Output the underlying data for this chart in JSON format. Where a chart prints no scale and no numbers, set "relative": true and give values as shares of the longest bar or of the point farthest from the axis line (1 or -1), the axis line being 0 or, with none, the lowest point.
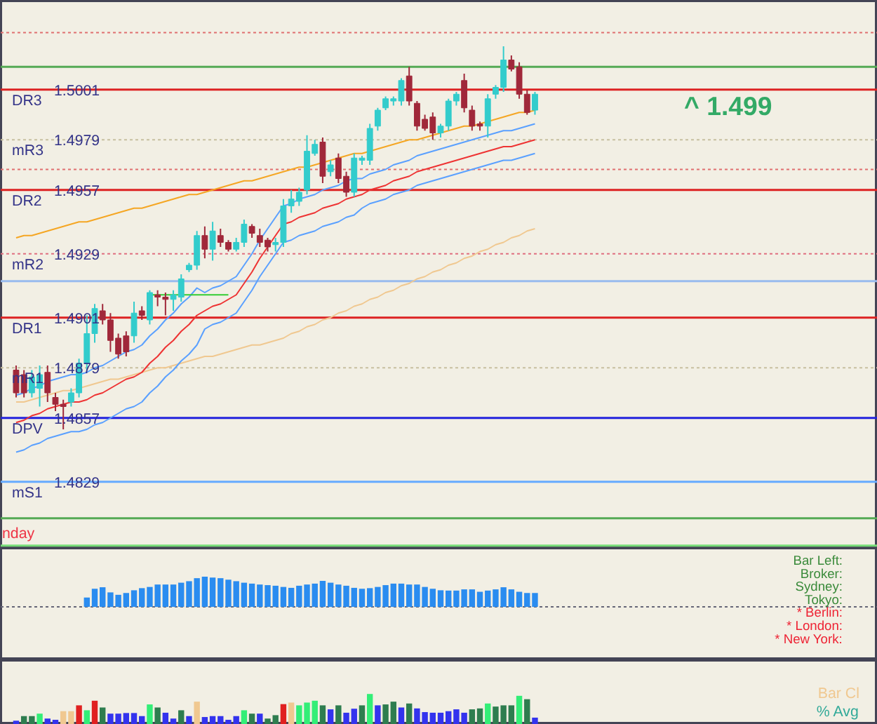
{
  "chart_data": [
    {
      "type": "candlestick",
      "tick_labels": "y",
      "grid": false,
      "ylim": [
        1.48,
        1.504
      ],
      "yticks": [
        1.5001,
        1.4979,
        1.4957,
        1.4929,
        1.4901,
        1.4879,
        1.4857,
        1.4829
      ],
      "categories": [
        null,
        null,
        null,
        null,
        null,
        null,
        null,
        null,
        null,
        null,
        null,
        null,
        null,
        null,
        null,
        null,
        null,
        null,
        null,
        null,
        null,
        null,
        null,
        null,
        null,
        null,
        null,
        null,
        null,
        null,
        null,
        null,
        null,
        null,
        null,
        null,
        null,
        null,
        null,
        null,
        null,
        null,
        null,
        null,
        null,
        null,
        null,
        null,
        null,
        null,
        null,
        null,
        null,
        null,
        null,
        null,
        null,
        null,
        null,
        null,
        null,
        null,
        null,
        null,
        null,
        null,
        null
      ],
      "ohlc": [
        [
          1.4878,
          1.488,
          1.4866,
          1.4868
        ],
        [
          1.4876,
          1.4878,
          1.4866,
          1.4868
        ],
        [
          1.4868,
          1.4878,
          1.4866,
          1.4875
        ],
        [
          1.487,
          1.488,
          1.4862,
          1.4876
        ],
        [
          1.4877,
          1.488,
          1.4864,
          1.4868
        ],
        [
          1.4866,
          1.4868,
          1.486,
          1.4863
        ],
        [
          1.4863,
          1.4865,
          1.4852,
          1.4862
        ],
        [
          1.4864,
          1.487,
          1.4862,
          1.4868
        ],
        [
          1.4868,
          1.4883,
          1.4866,
          1.4881
        ],
        [
          1.4881,
          1.4902,
          1.4878,
          1.4894
        ],
        [
          1.4894,
          1.4907,
          1.489,
          1.4905
        ],
        [
          1.4904,
          1.4907,
          1.4898,
          1.49
        ],
        [
          1.49,
          1.4903,
          1.4886,
          1.4891
        ],
        [
          1.4892,
          1.4894,
          1.4883,
          1.4885
        ],
        [
          1.4893,
          1.4895,
          1.4884,
          1.4886
        ],
        [
          1.4893,
          1.4908,
          1.489,
          1.4903
        ],
        [
          1.4904,
          1.4906,
          1.49,
          1.4902
        ],
        [
          1.49,
          1.4913,
          1.4898,
          1.4912
        ],
        [
          1.4911,
          1.4913,
          1.4906,
          1.491
        ],
        [
          1.491,
          1.4912,
          1.4902,
          1.4909
        ],
        [
          1.4909,
          1.4913,
          1.4904,
          1.4911
        ],
        [
          1.491,
          1.492,
          1.4908,
          1.4918
        ],
        [
          1.4922,
          1.4925,
          1.4921,
          1.4924
        ],
        [
          1.4924,
          1.4939,
          1.4922,
          1.4937
        ],
        [
          1.4937,
          1.4941,
          1.4927,
          1.4931
        ],
        [
          1.4931,
          1.4943,
          1.4926,
          1.4939
        ],
        [
          1.4937,
          1.494,
          1.4932,
          1.4934
        ],
        [
          1.4934,
          1.4935,
          1.493,
          1.4931
        ],
        [
          1.4931,
          1.4936,
          1.493,
          1.4934
        ],
        [
          1.4934,
          1.4944,
          1.4932,
          1.4942
        ],
        [
          1.4941,
          1.4942,
          1.4936,
          1.4938
        ],
        [
          1.4937,
          1.494,
          1.4932,
          1.4934
        ],
        [
          1.4935,
          1.4936,
          1.493,
          1.4932
        ],
        [
          1.4933,
          1.4936,
          1.493,
          1.4934
        ],
        [
          1.4934,
          1.4953,
          1.4932,
          1.495
        ],
        [
          1.495,
          1.4957,
          1.4947,
          1.4953
        ],
        [
          1.4952,
          1.4958,
          1.495,
          1.4956
        ],
        [
          1.4957,
          1.4981,
          1.4955,
          1.4974
        ],
        [
          1.4973,
          1.4979,
          1.4972,
          1.4977
        ],
        [
          1.4978,
          1.498,
          1.496,
          1.4963
        ],
        [
          1.4965,
          1.497,
          1.4963,
          1.4968
        ],
        [
          1.4971,
          1.4973,
          1.496,
          1.4962
        ],
        [
          1.4963,
          1.4965,
          1.4954,
          1.4956
        ],
        [
          1.4956,
          1.4973,
          1.4954,
          1.4971
        ],
        [
          1.497,
          1.4972,
          1.4968,
          1.4971
        ],
        [
          1.497,
          1.4986,
          1.4968,
          1.4984
        ],
        [
          1.4985,
          1.4993,
          1.4983,
          1.4992
        ],
        [
          1.4993,
          1.4998,
          1.4992,
          1.4997
        ],
        [
          1.4996,
          1.4998,
          1.4994,
          1.4997
        ],
        [
          1.4996,
          1.5006,
          1.4994,
          1.5005
        ],
        [
          1.5007,
          1.5011,
          1.4994,
          1.4996
        ],
        [
          1.4995,
          1.4996,
          1.4983,
          1.4985
        ],
        [
          1.4988,
          1.499,
          1.4983,
          1.4984
        ],
        [
          1.4989,
          1.4991,
          1.4979,
          1.4982
        ],
        [
          1.4982,
          1.4986,
          1.498,
          1.4985
        ],
        [
          1.4985,
          1.4997,
          1.4983,
          1.4996
        ],
        [
          1.4996,
          1.5,
          1.4994,
          1.4999
        ],
        [
          1.5005,
          1.5008,
          1.4991,
          1.4993
        ],
        [
          1.4992,
          1.4994,
          1.4983,
          1.4985
        ],
        [
          1.4986,
          1.4987,
          1.4983,
          1.4985
        ],
        [
          1.4985,
          1.4999,
          1.498,
          1.4997
        ],
        [
          1.4999,
          1.5003,
          1.4997,
          1.5002
        ],
        [
          1.5002,
          1.502,
          1.5,
          1.5014
        ],
        [
          1.5014,
          1.5016,
          1.5009,
          1.501
        ],
        [
          1.5011,
          1.5013,
          1.4997,
          1.4999
        ],
        [
          1.4999,
          1.5001,
          1.499,
          1.4991
        ],
        [
          1.4992,
          1.5,
          1.499,
          1.4999
        ]
      ],
      "series": [
        {
          "type": "line",
          "color": "#f5a623",
          "values": [
            1.4936,
            1.4937,
            1.4937,
            1.4938,
            1.4939,
            1.494,
            1.4941,
            1.4942,
            1.4943,
            1.4943,
            1.4944,
            1.4945,
            1.4946,
            1.4947,
            1.4948,
            1.4949,
            1.4949,
            1.495,
            1.4951,
            1.4952,
            1.4953,
            1.4954,
            1.4955,
            1.4955,
            1.4956,
            1.4957,
            1.4958,
            1.4959,
            1.496,
            1.4961,
            1.4961,
            1.4962,
            1.4963,
            1.4964,
            1.4965,
            1.4966,
            1.4967,
            1.4967,
            1.4968,
            1.4969,
            1.497,
            1.4971,
            1.4972,
            1.4973,
            1.4973,
            1.4974,
            1.4975,
            1.4976,
            1.4977,
            1.4978,
            1.4979,
            1.4979,
            1.498,
            1.4981,
            1.4982,
            1.4983,
            1.4984,
            1.4985,
            1.4985,
            1.4986,
            1.4987,
            1.4988,
            1.4989,
            1.499,
            1.4991,
            1.4991,
            1.4992
          ]
        },
        {
          "type": "line",
          "color": "#f0c890",
          "values": [
            1.4864,
            1.4864,
            1.4865,
            1.4866,
            1.4867,
            1.4868,
            1.4869,
            1.4869,
            1.487,
            1.4871,
            1.4872,
            1.4873,
            1.4874,
            1.4874,
            1.4875,
            1.4876,
            1.4877,
            1.4878,
            1.4879,
            1.4879,
            1.488,
            1.4881,
            1.4882,
            1.4883,
            1.4884,
            1.4884,
            1.4885,
            1.4886,
            1.4887,
            1.4888,
            1.4889,
            1.4889,
            1.489,
            1.4891,
            1.4892,
            1.4894,
            1.4895,
            1.4897,
            1.4898,
            1.49,
            1.4901,
            1.4903,
            1.4904,
            1.4906,
            1.4907,
            1.4909,
            1.491,
            1.4912,
            1.4913,
            1.4915,
            1.4916,
            1.4918,
            1.4919,
            1.4921,
            1.4922,
            1.4924,
            1.4925,
            1.4927,
            1.4928,
            1.493,
            1.4931,
            1.4933,
            1.4934,
            1.4936,
            1.4937,
            1.4939,
            1.494
          ]
        },
        {
          "type": "line",
          "color": "#ee3333",
          "values": [
            1.4855,
            1.4856,
            1.4858,
            1.4859,
            1.4861,
            1.4862,
            1.4863,
            1.4864,
            1.4864,
            1.4865,
            1.4867,
            1.4868,
            1.487,
            1.4872,
            1.4874,
            1.4875,
            1.4877,
            1.4881,
            1.4884,
            1.4888,
            1.4891,
            1.4895,
            1.4898,
            1.4902,
            1.4904,
            1.4906,
            1.4907,
            1.4909,
            1.4911,
            1.4916,
            1.4921,
            1.4927,
            1.4932,
            1.4937,
            1.4942,
            1.4943,
            1.4945,
            1.4946,
            1.4947,
            1.4949,
            1.495,
            1.4951,
            1.4953,
            1.4954,
            1.4955,
            1.4957,
            1.4958,
            1.4959,
            1.4961,
            1.4962,
            1.4963,
            1.4965,
            1.4966,
            1.4967,
            1.4968,
            1.4969,
            1.497,
            1.4971,
            1.4972,
            1.4973,
            1.4974,
            1.4975,
            1.4976,
            1.4976,
            1.4977,
            1.4978,
            1.4979
          ]
        },
        {
          "type": "line",
          "color": "#5aa0ff",
          "values": [
            1.4867,
            1.4868,
            1.487,
            1.4871,
            1.4873,
            1.4874,
            1.4875,
            1.4876,
            1.4876,
            1.4877,
            1.4879,
            1.488,
            1.4882,
            1.4884,
            1.4886,
            1.4887,
            1.4889,
            1.4893,
            1.4896,
            1.49,
            1.4903,
            1.4907,
            1.491,
            1.4914,
            1.4912,
            1.4914,
            1.4915,
            1.4917,
            1.4919,
            1.4924,
            1.4929,
            1.4935,
            1.494,
            1.4945,
            1.495,
            1.4951,
            1.4953,
            1.4954,
            1.4955,
            1.4957,
            1.4958,
            1.4959,
            1.4961,
            1.4962,
            1.4962,
            1.4964,
            1.4965,
            1.4966,
            1.4968,
            1.4969,
            1.497,
            1.4972,
            1.4973,
            1.4974,
            1.4975,
            1.4976,
            1.4977,
            1.4978,
            1.4979,
            1.498,
            1.4981,
            1.4982,
            1.4983,
            1.4983,
            1.4984,
            1.4985,
            1.4986
          ]
        },
        {
          "type": "line",
          "color": "#5aa0ff",
          "values": [
            1.4842,
            1.4843,
            1.4845,
            1.4846,
            1.4848,
            1.4849,
            1.485,
            1.4851,
            1.4851,
            1.4852,
            1.4854,
            1.4855,
            1.4857,
            1.4859,
            1.4861,
            1.4862,
            1.4864,
            1.4868,
            1.4871,
            1.4875,
            1.4878,
            1.4882,
            1.4885,
            1.4889,
            1.4896,
            1.4898,
            1.4899,
            1.4901,
            1.4903,
            1.4908,
            1.4913,
            1.4919,
            1.4924,
            1.4929,
            1.4934,
            1.4935,
            1.4937,
            1.4938,
            1.4939,
            1.4941,
            1.4942,
            1.4943,
            1.4945,
            1.4946,
            1.4949,
            1.4951,
            1.4952,
            1.4953,
            1.4955,
            1.4956,
            1.4957,
            1.4959,
            1.496,
            1.4961,
            1.4962,
            1.4963,
            1.4964,
            1.4965,
            1.4966,
            1.4967,
            1.4968,
            1.4969,
            1.497,
            1.497,
            1.4971,
            1.4972,
            1.4973
          ]
        },
        {
          "type": "line",
          "color": "#33cc33",
          "values": [
            null,
            null,
            null,
            null,
            null,
            null,
            null,
            null,
            null,
            null,
            null,
            null,
            null,
            null,
            null,
            null,
            null,
            1.4911,
            1.4911,
            1.4911,
            1.4911,
            1.4911,
            1.4911,
            1.4911,
            1.4911,
            1.4911,
            1.4911,
            1.4911,
            null,
            null,
            null,
            null,
            null,
            null,
            null,
            null,
            null,
            null,
            null,
            null,
            null,
            null,
            null,
            null,
            null,
            null,
            null,
            null,
            null,
            null,
            null,
            null,
            null,
            null,
            null,
            null,
            null,
            null,
            null,
            null,
            null,
            null,
            null,
            null,
            null,
            null,
            null
          ]
        }
      ],
      "ref_lines": [
        {
          "axis": "y",
          "value": 1.5001,
          "label": "DR3",
          "color": "#dd2222"
        },
        {
          "axis": "y",
          "value": 1.4979,
          "label": "mR3",
          "color": "#c8c0a0",
          "line_style": "dotted"
        },
        {
          "axis": "y",
          "value": 1.4957,
          "label": "DR2",
          "color": "#dd2222"
        },
        {
          "axis": "y",
          "value": 1.4929,
          "label": "mR2",
          "color": "#e07080",
          "line_style": "dotted"
        },
        {
          "axis": "y",
          "value": 1.4901,
          "label": "DR1",
          "color": "#dd2222"
        },
        {
          "axis": "y",
          "value": 1.4879,
          "label": "mR1",
          "color": "#c8c0a0",
          "line_style": "dotted"
        },
        {
          "axis": "y",
          "value": 1.4857,
          "label": "DPV",
          "color": "#2222dd"
        },
        {
          "axis": "y",
          "value": 1.4829,
          "label": "mS1",
          "color": "#66aaff"
        },
        {
          "axis": "y",
          "value": 1.5026,
          "color": "#e07070",
          "line_style": "dotted"
        },
        {
          "axis": "y",
          "value": 1.5011,
          "color": "#55aa55"
        },
        {
          "axis": "y",
          "value": 1.4966,
          "color": "#e07070",
          "line_style": "dotted"
        },
        {
          "axis": "y",
          "value": 1.4917,
          "color": "#99bbee"
        },
        {
          "axis": "y",
          "value": 1.4813,
          "color": "#55aa55"
        },
        {
          "axis": "y",
          "value": 1.4801,
          "color": "#77dd77"
        }
      ],
      "annotations": [
        "^ 1.499",
        "nday"
      ]
    },
    {
      "type": "bar",
      "relative": true,
      "tick_labels": false,
      "grid": false,
      "color": "#2a8cf0",
      "categories": [
        null,
        null,
        null,
        null,
        null,
        null,
        null,
        null,
        null,
        null,
        null,
        null,
        null,
        null,
        null,
        null,
        null,
        null,
        null,
        null,
        null,
        null,
        null,
        null,
        null,
        null,
        null,
        null,
        null,
        null,
        null,
        null,
        null,
        null,
        null,
        null,
        null,
        null,
        null,
        null,
        null,
        null,
        null,
        null,
        null,
        null,
        null,
        null,
        null,
        null,
        null,
        null,
        null,
        null,
        null,
        null,
        null,
        null
      ],
      "values": [
        0.31,
        0.6,
        0.65,
        0.48,
        0.4,
        0.46,
        0.55,
        0.62,
        0.66,
        0.74,
        0.74,
        0.74,
        0.8,
        0.85,
        0.95,
        1.0,
        0.97,
        0.95,
        0.9,
        0.85,
        0.8,
        0.77,
        0.74,
        0.72,
        0.7,
        0.66,
        0.63,
        0.7,
        0.74,
        0.77,
        0.86,
        0.8,
        0.74,
        0.7,
        0.63,
        0.6,
        0.62,
        0.66,
        0.72,
        0.77,
        0.77,
        0.74,
        0.74,
        0.66,
        0.6,
        0.55,
        0.54,
        0.54,
        0.58,
        0.58,
        0.5,
        0.54,
        0.58,
        0.65,
        0.58,
        0.5,
        0.46,
        0.46
      ],
      "annotations": [
        "Bar Left:",
        "Broker:",
        "Sydney:",
        "Tokyo:",
        "* Berlin:",
        "* London:",
        "* New York:"
      ]
    },
    {
      "type": "bar",
      "relative": true,
      "tick_labels": false,
      "grid": false,
      "categories": [
        null,
        null,
        null,
        null,
        null,
        null,
        null,
        null,
        null,
        null,
        null,
        null,
        null,
        null,
        null,
        null,
        null,
        null,
        null,
        null,
        null,
        null,
        null,
        null,
        null,
        null,
        null,
        null,
        null,
        null,
        null,
        null,
        null,
        null,
        null,
        null,
        null,
        null,
        null,
        null,
        null,
        null,
        null,
        null,
        null,
        null,
        null,
        null,
        null,
        null,
        null,
        null,
        null,
        null,
        null,
        null,
        null,
        null,
        null,
        null,
        null,
        null,
        null,
        null,
        null,
        null,
        null
      ],
      "values": [
        0.13,
        0.28,
        0.28,
        0.36,
        0.2,
        0.16,
        0.44,
        0.44,
        0.63,
        0.47,
        0.78,
        0.56,
        0.36,
        0.36,
        0.38,
        0.38,
        0.28,
        0.66,
        0.56,
        0.39,
        0.2,
        0.47,
        0.28,
        0.75,
        0.25,
        0.28,
        0.28,
        0.16,
        0.28,
        0.47,
        0.36,
        0.36,
        0.2,
        0.31,
        0.67,
        0.72,
        0.63,
        0.72,
        0.78,
        0.63,
        0.5,
        0.63,
        0.39,
        0.52,
        0.63,
        1,
        0.63,
        0.66,
        0.75,
        0.56,
        0.69,
        0.53,
        0.41,
        0.39,
        0.39,
        0.44,
        0.5,
        0.39,
        0.5,
        0.53,
        0.69,
        0.59,
        0.63,
        0.63,
        0.94,
        0.83,
        0.23
      ],
      "colors": [
        "#3333ee",
        "#2e7d4f",
        "#2e7d4f",
        "#33ee77",
        "#3333ee",
        "#3333ee",
        "#f0c890",
        "#f0c890",
        "#e02020",
        "#33ee77",
        "#e02020",
        "#2e7d4f",
        "#3333ee",
        "#3333ee",
        "#3333ee",
        "#3333ee",
        "#3333ee",
        "#33ee77",
        "#2e7d4f",
        "#3333ee",
        "#3333ee",
        "#2e7d4f",
        "#3333ee",
        "#f0c890",
        "#3333ee",
        "#3333ee",
        "#3333ee",
        "#3333ee",
        "#3333ee",
        "#33ee77",
        "#2e7d4f",
        "#3333ee",
        "#2e7d4f",
        "#2e7d4f",
        "#e02020",
        "#f0c890",
        "#33ee77",
        "#33ee77",
        "#33ee77",
        "#2e7d4f",
        "#3333ee",
        "#2e7d4f",
        "#3333ee",
        "#3333ee",
        "#2e7d4f",
        "#33ee77",
        "#3333ee",
        "#2e7d4f",
        "#2e7d4f",
        "#3333ee",
        "#2e7d4f",
        "#3333ee",
        "#3333ee",
        "#3333ee",
        "#3333ee",
        "#3333ee",
        "#3333ee",
        "#3333ee",
        "#2e7d4f",
        "#2e7d4f",
        "#33ee77",
        "#2e7d4f",
        "#2e7d4f",
        "#2e7d4f",
        "#33ee77",
        "#2e7d4f",
        "#3333ee"
      ],
      "annotations": [
        "Bar Cl",
        "% Avg"
      ]
    }
  ]
}
